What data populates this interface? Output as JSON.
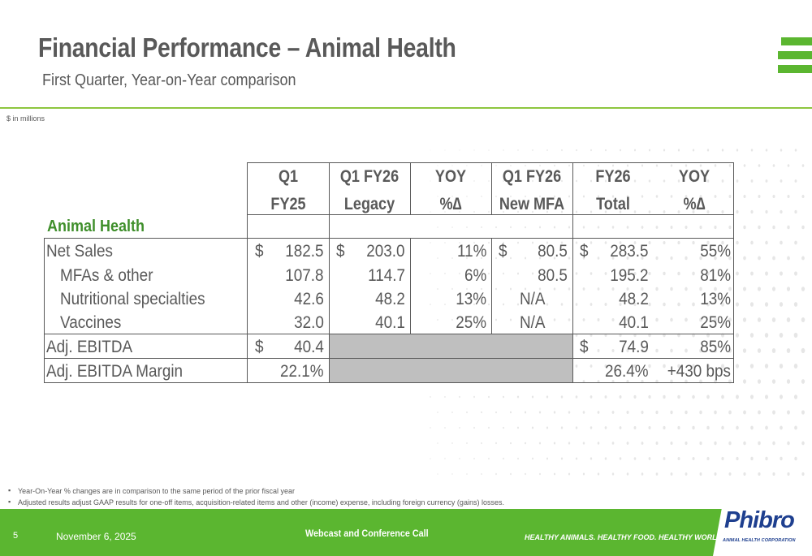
{
  "header": {
    "title": "Financial Performance – Animal Health",
    "subtitle": "First Quarter, Year-on-Year comparison",
    "units_note": "$ in millions"
  },
  "table": {
    "section_label": "Animal Health",
    "columns": [
      {
        "line1": "Q1",
        "line2": "FY25"
      },
      {
        "line1": "Q1 FY26",
        "line2": "Legacy"
      },
      {
        "line1": "YOY",
        "line2": "%∆"
      },
      {
        "line1": "Q1 FY26",
        "line2": "New MFA"
      },
      {
        "line1": "FY26",
        "line2": "Total"
      },
      {
        "line1": "YOY",
        "line2": "%∆"
      }
    ],
    "currency_symbol": "$",
    "rows": [
      {
        "label": "Net Sales",
        "q1fy25": "182.5",
        "legacy": "203.0",
        "yoy1": "11%",
        "new_mfa": "80.5",
        "total": "283.5",
        "yoy2": "55%"
      },
      {
        "label": "MFAs & other",
        "q1fy25": "107.8",
        "legacy": "114.7",
        "yoy1": "6%",
        "new_mfa": "80.5",
        "total": "195.2",
        "yoy2": "81%"
      },
      {
        "label": "Nutritional specialties",
        "q1fy25": "42.6",
        "legacy": "48.2",
        "yoy1": "13%",
        "new_mfa": "N/A",
        "total": "48.2",
        "yoy2": "13%"
      },
      {
        "label": "Vaccines",
        "q1fy25": "32.0",
        "legacy": "40.1",
        "yoy1": "25%",
        "new_mfa": "N/A",
        "total": "40.1",
        "yoy2": "25%"
      },
      {
        "label": "Adj. EBITDA",
        "q1fy25": "40.4",
        "total": "74.9",
        "yoy2": "85%"
      },
      {
        "label": "Adj. EBITDA Margin",
        "q1fy25": "22.1%",
        "total": "26.4%",
        "yoy2": "+430 bps"
      }
    ]
  },
  "footnotes": [
    "Year-On-Year % changes are in comparison to the same period of the prior fiscal year",
    "Adjusted results adjust GAAP results for one-off items, acquisition-related items and other (income) expense, including foreign currency (gains) losses."
  ],
  "footer": {
    "page_number": "5",
    "date": "November 6, 2025",
    "event": "Webcast and Conference Call",
    "tagline": "HEALTHY ANIMALS. HEALTHY FOOD. HEALTHY WORLD.®"
  },
  "brand": {
    "name": "Phibro",
    "tagline": "ANIMAL HEALTH CORPORATION"
  },
  "colors": {
    "accent_green": "#5bb630",
    "section_green": "#3f8f2b",
    "text_gray": "#595959",
    "brand_blue": "#1e3f8f",
    "shaded_cell": "#bfbfbf"
  }
}
